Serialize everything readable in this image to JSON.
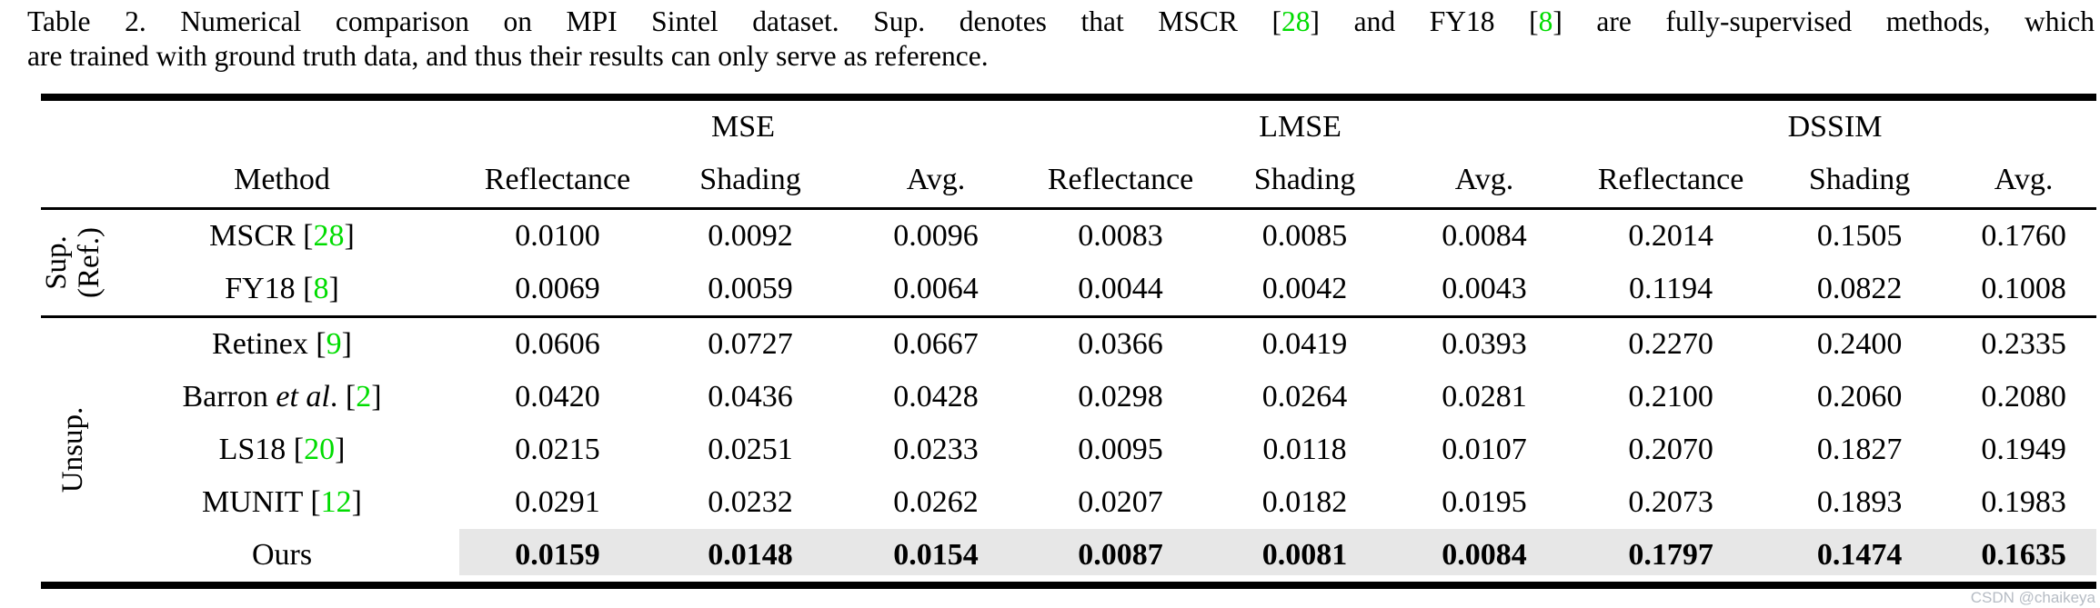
{
  "colors": {
    "citation_green": "#00dc00",
    "highlight_gray": "#e7e7e7",
    "rule_black": "#000000",
    "watermark_gray": "#b6bcc4"
  },
  "caption": {
    "lines": [
      {
        "justify": true,
        "segments": [
          {
            "text": "Table 2. Numerical comparison on MPI Sintel dataset. Sup. denotes that MSCR ["
          },
          {
            "text": "28",
            "style": "cite"
          },
          {
            "text": "] and FY18 ["
          },
          {
            "text": "8",
            "style": "cite"
          },
          {
            "text": "] are fully-supervised methods, which"
          }
        ]
      },
      {
        "justify": false,
        "segments": [
          {
            "text": "are trained with ground truth data, and thus their results can only serve as reference."
          }
        ]
      }
    ]
  },
  "table": {
    "method_header": "Method",
    "metric_groups": [
      {
        "label": "MSE"
      },
      {
        "label": "LMSE"
      },
      {
        "label": "DSSIM"
      }
    ],
    "sub_headers": [
      "Reflectance",
      "Shading",
      "Avg."
    ],
    "row_groups": [
      {
        "label": "Sup.\n(Ref.)",
        "rows": [
          {
            "method": [
              {
                "text": "MSCR ["
              },
              {
                "text": "28",
                "style": "cite"
              },
              {
                "text": "]"
              }
            ],
            "values": [
              "0.0100",
              "0.0092",
              "0.0096",
              "0.0083",
              "0.0085",
              "0.0084",
              "0.2014",
              "0.1505",
              "0.1760"
            ],
            "highlight": false
          },
          {
            "method": [
              {
                "text": "FY18 ["
              },
              {
                "text": "8",
                "style": "cite"
              },
              {
                "text": "]"
              }
            ],
            "values": [
              "0.0069",
              "0.0059",
              "0.0064",
              "0.0044",
              "0.0042",
              "0.0043",
              "0.1194",
              "0.0822",
              "0.1008"
            ],
            "highlight": false
          }
        ]
      },
      {
        "label": "Unsup.",
        "rows": [
          {
            "method": [
              {
                "text": "Retinex ["
              },
              {
                "text": "9",
                "style": "cite"
              },
              {
                "text": "]"
              }
            ],
            "values": [
              "0.0606",
              "0.0727",
              "0.0667",
              "0.0366",
              "0.0419",
              "0.0393",
              "0.2270",
              "0.2400",
              "0.2335"
            ],
            "highlight": false
          },
          {
            "method": [
              {
                "text": "Barron "
              },
              {
                "text": "et al",
                "style": "it"
              },
              {
                "text": ". ["
              },
              {
                "text": "2",
                "style": "cite"
              },
              {
                "text": "]"
              }
            ],
            "values": [
              "0.0420",
              "0.0436",
              "0.0428",
              "0.0298",
              "0.0264",
              "0.0281",
              "0.2100",
              "0.2060",
              "0.2080"
            ],
            "highlight": false
          },
          {
            "method": [
              {
                "text": "LS18 ["
              },
              {
                "text": "20",
                "style": "cite"
              },
              {
                "text": "]"
              }
            ],
            "values": [
              "0.0215",
              "0.0251",
              "0.0233",
              "0.0095",
              "0.0118",
              "0.0107",
              "0.2070",
              "0.1827",
              "0.1949"
            ],
            "highlight": false
          },
          {
            "method": [
              {
                "text": "MUNIT ["
              },
              {
                "text": "12",
                "style": "cite"
              },
              {
                "text": "]"
              }
            ],
            "values": [
              "0.0291",
              "0.0232",
              "0.0262",
              "0.0207",
              "0.0182",
              "0.0195",
              "0.2073",
              "0.1893",
              "0.1983"
            ],
            "highlight": false
          },
          {
            "method": [
              {
                "text": "Ours"
              }
            ],
            "values": [
              "0.0159",
              "0.0148",
              "0.0154",
              "0.0087",
              "0.0081",
              "0.0084",
              "0.1797",
              "0.1474",
              "0.1635"
            ],
            "highlight": true
          }
        ]
      }
    ]
  },
  "watermark": "CSDN @chaikeya"
}
